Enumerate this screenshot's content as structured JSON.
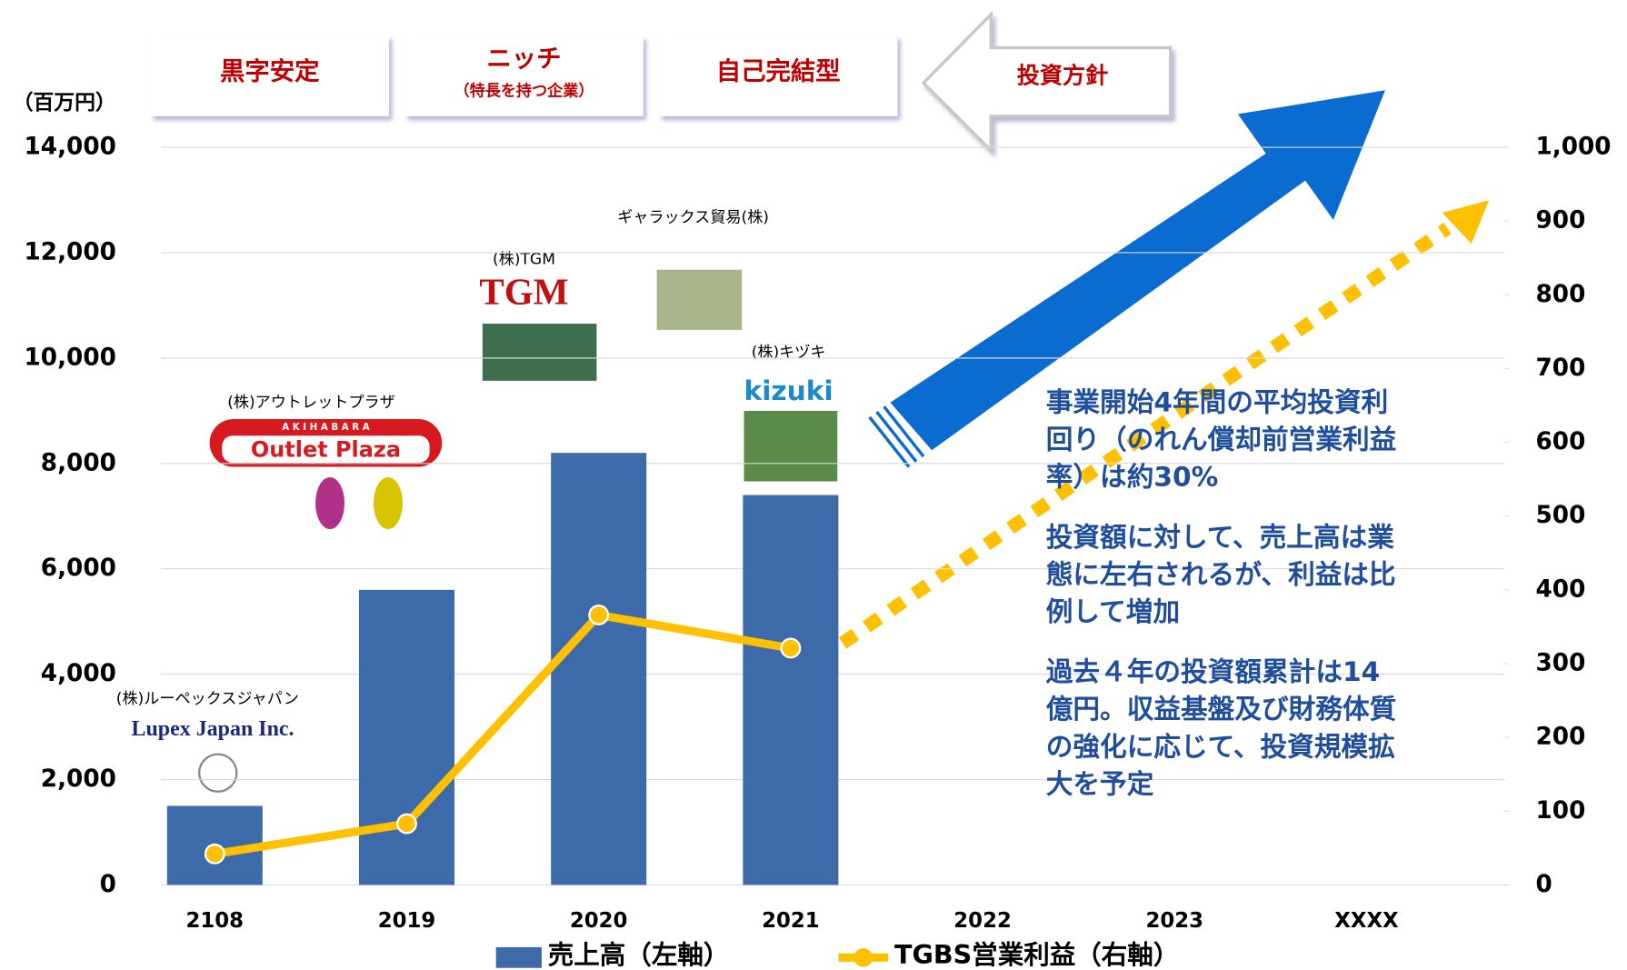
{
  "chart_data": {
    "type": "bar-line",
    "unit_label": "（百万円）",
    "categories": [
      "2108",
      "2019",
      "2020",
      "2021",
      "2022",
      "2023",
      "XXXX"
    ],
    "series": [
      {
        "name": "売上高（左軸）",
        "type": "bar",
        "color": "#3d6aa8",
        "values": [
          1500,
          5600,
          8200,
          7400,
          null,
          null,
          null
        ]
      },
      {
        "name": "TGBS営業利益（右軸）",
        "type": "line",
        "axis": "y2",
        "color": "#ffc000",
        "values": [
          42,
          83,
          366,
          321,
          null,
          null,
          null
        ]
      }
    ],
    "ylim": [
      0,
      14000
    ],
    "yticks": [
      0,
      {
        "value": 2000,
        "label": "2,000"
      },
      {
        "value": 4000,
        "label": "4,000"
      },
      {
        "value": 6000,
        "label": "6,000"
      },
      {
        "value": 8000,
        "label": "8,000"
      },
      {
        "value": 10000,
        "label": "10,000"
      },
      {
        "value": 12000,
        "label": "12,000"
      },
      {
        "value": 14000,
        "label": "14,000"
      }
    ],
    "y2lim": [
      0,
      1000
    ],
    "y2ticks": [
      0,
      100,
      200,
      300,
      400,
      500,
      600,
      700,
      800,
      900,
      {
        "value": 1000,
        "label": "1,000"
      }
    ],
    "grid": true,
    "legend": "bottom",
    "policy_boxes": [
      {
        "title": "黒字安定"
      },
      {
        "title": "ニッチ",
        "subtitle": "（特長を持つ企業）"
      },
      {
        "title": "自己完結型"
      }
    ],
    "policy_arrow_label": "投資方針",
    "companies": [
      {
        "name": "(株)ルーペックスジャパン",
        "logo": "Lupex Japan Inc."
      },
      {
        "name": "(株)アウトレットプラザ",
        "logo_top": "A K I H A B A R A",
        "logo": "Outlet Plaza"
      },
      {
        "name": "(株)TGM",
        "logo": "TGM"
      },
      {
        "name": "ギャラックス貿易(株)"
      },
      {
        "name": "(株)キヅキ",
        "logo": "kizuki"
      }
    ],
    "side_text": [
      {
        "lines": [
          "事業開始4年間の平均投資利",
          "回り（のれん償却前営業利益",
          "率）は約30%"
        ]
      },
      {
        "lines": [
          "投資額に対して、売上高は業",
          "態に左右されるが、利益は比",
          "例して増加"
        ]
      },
      {
        "lines": [
          "過去４年の投資額累計は14",
          "億円。収益基盤及び財務体質",
          "の強化に応じて、投資規模拡",
          "大を予定"
        ]
      }
    ]
  }
}
